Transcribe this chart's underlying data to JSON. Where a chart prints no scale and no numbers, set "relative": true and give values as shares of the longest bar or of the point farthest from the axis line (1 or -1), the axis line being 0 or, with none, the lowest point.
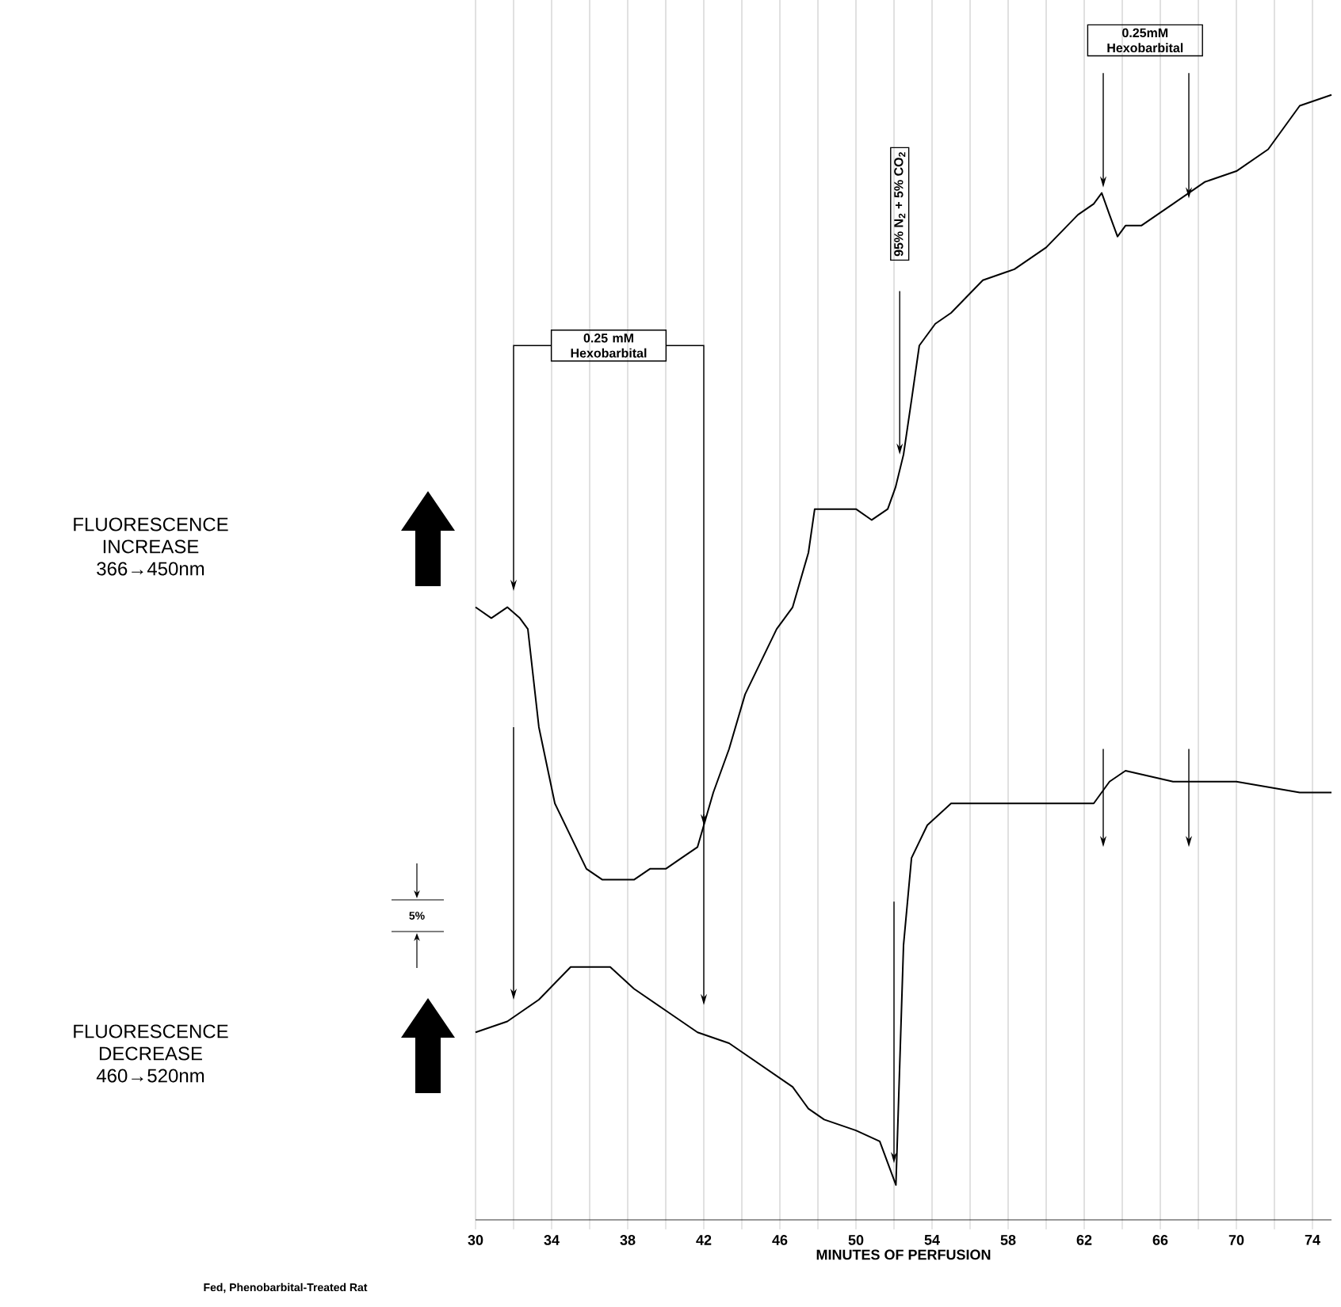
{
  "chart_data": {
    "type": "line",
    "relative": true,
    "xlabel": "MINUTES OF PERFUSION",
    "xlim": [
      30,
      75
    ],
    "xticks": [
      30,
      {
        "value": 32,
        "label": null
      },
      34,
      {
        "value": 36,
        "label": null
      },
      38,
      {
        "value": 40,
        "label": null
      },
      42,
      {
        "value": 44,
        "label": null
      },
      46,
      {
        "value": 48,
        "label": null
      },
      50,
      {
        "value": 52,
        "label": null
      },
      54,
      {
        "value": 56,
        "label": null
      },
      58,
      {
        "value": 60,
        "label": null
      },
      62,
      {
        "value": 64,
        "label": null
      },
      66,
      {
        "value": 68,
        "label": null
      },
      70,
      {
        "value": 72,
        "label": null
      },
      74
    ],
    "grid": "x",
    "series": [
      {
        "color": "#000000",
        "x": [
          30,
          30.83,
          31.67,
          32.33,
          32.75,
          33.33,
          34.17,
          35,
          35.83,
          36.67,
          37.5,
          38.33,
          39.17,
          40,
          40.83,
          41.67,
          42.5,
          43.33,
          44.17,
          45,
          45.83,
          46.67,
          47.5,
          47.83,
          48.75,
          50,
          50.83,
          51.67,
          52.08,
          52.5,
          52.92,
          53.33,
          54.17,
          55,
          56.67,
          58.33,
          60,
          61.67,
          62.5,
          62.92,
          63.33,
          63.75,
          64.17,
          65,
          66.67,
          68.33,
          70,
          71.67,
          73.33,
          75
        ],
        "values": [
          0.53,
          0.52,
          0.53,
          0.52,
          0.51,
          0.42,
          0.35,
          0.32,
          0.29,
          0.28,
          0.28,
          0.28,
          0.29,
          0.29,
          0.3,
          0.31,
          0.36,
          0.4,
          0.45,
          0.48,
          0.51,
          0.53,
          0.58,
          0.62,
          0.62,
          0.62,
          0.61,
          0.62,
          0.64,
          0.67,
          0.72,
          0.77,
          0.79,
          0.8,
          0.83,
          0.84,
          0.86,
          0.89,
          0.9,
          0.91,
          0.89,
          0.87,
          0.88,
          0.88,
          0.9,
          0.92,
          0.93,
          0.95,
          0.99,
          1.0
        ]
      },
      {
        "color": "#000000",
        "x": [
          30,
          31.67,
          32.5,
          33.33,
          35,
          36.25,
          37.08,
          38.33,
          40,
          41.67,
          43.33,
          45,
          46.67,
          47.5,
          48.33,
          50,
          51.25,
          52.1,
          52.5,
          52.92,
          53.75,
          55,
          56.67,
          60,
          62.5,
          63.33,
          64.17,
          66.67,
          70,
          73.33,
          75
        ],
        "values": [
          0.14,
          0.15,
          0.16,
          0.17,
          0.2,
          0.2,
          0.2,
          0.18,
          0.16,
          0.14,
          0.13,
          0.11,
          0.09,
          0.07,
          0.06,
          0.05,
          0.04,
          0,
          0.22,
          0.3,
          0.33,
          0.35,
          0.35,
          0.35,
          0.35,
          0.37,
          0.38,
          0.37,
          0.37,
          0.36,
          0.36
        ]
      }
    ],
    "annotations": [
      "FLUORESCENCE INCREASE 366→450nm",
      "FLUORESCENCE DECREASE 460→520nm",
      "5%",
      "Fed, Phenobarbital-Treated Rat",
      "0.25 mM Hexobarbital",
      "95% N$_{2}$ + 5% CO$_{2}$",
      "0.25mM Hexobarbital"
    ]
  }
}
